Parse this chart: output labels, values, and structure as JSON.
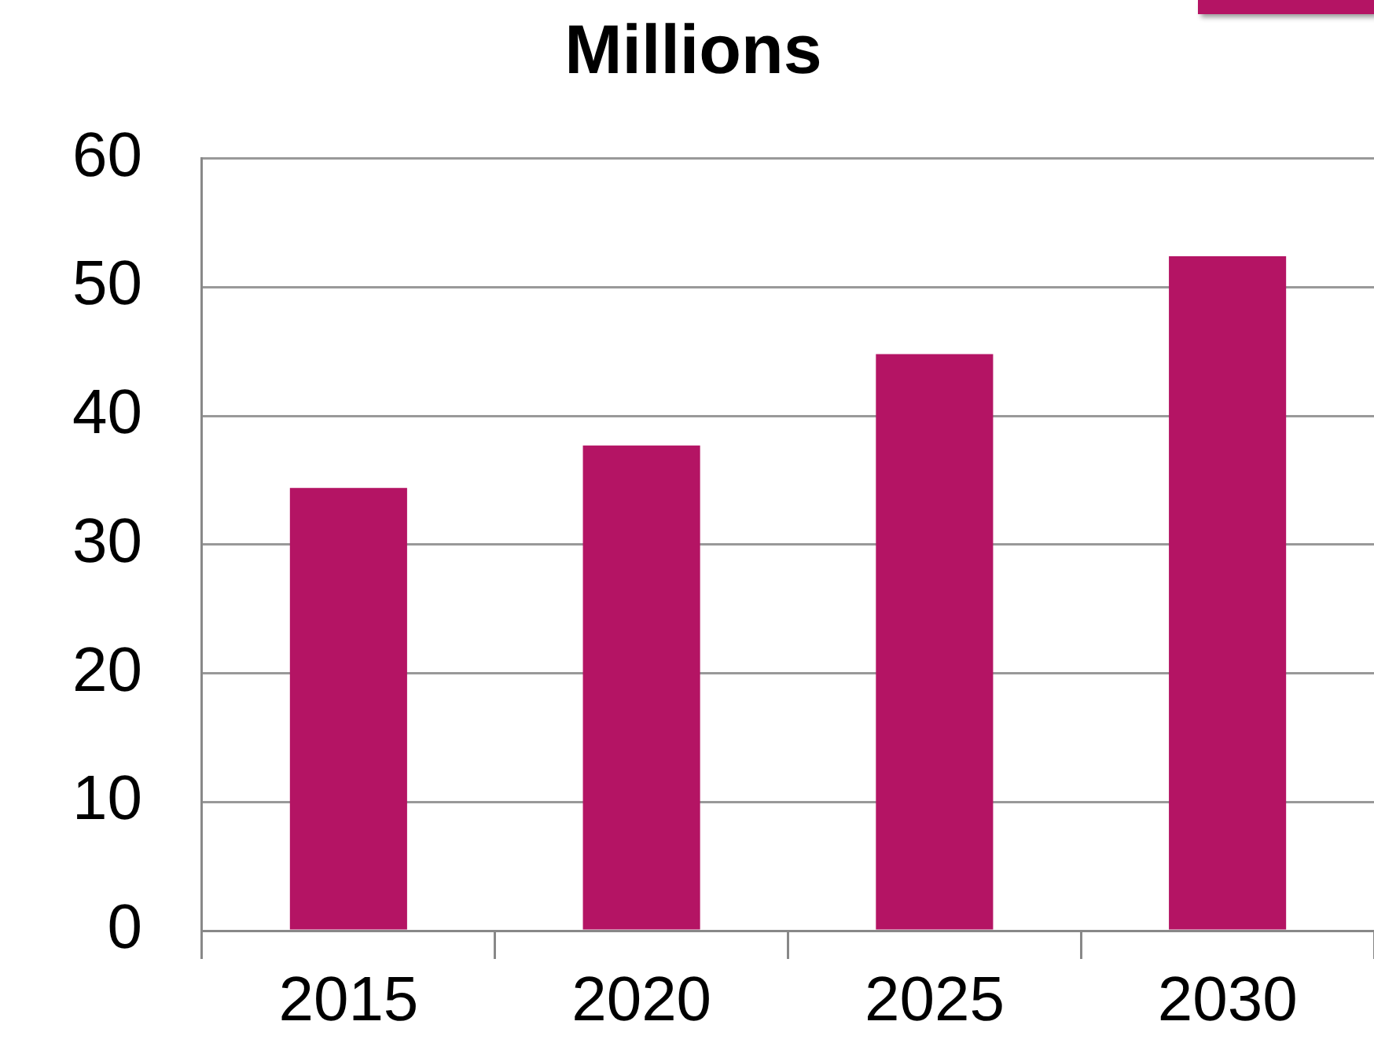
{
  "chart_data": {
    "type": "bar",
    "title": "Millions",
    "categories": [
      "2015",
      "2020",
      "2025",
      "2030"
    ],
    "values": [
      34.4,
      37.7,
      44.8,
      52.4
    ],
    "color": "#b41464",
    "ylim": [
      0,
      60
    ],
    "yticks": [
      0,
      10,
      20,
      30,
      40,
      50,
      60
    ],
    "grid": "y"
  }
}
